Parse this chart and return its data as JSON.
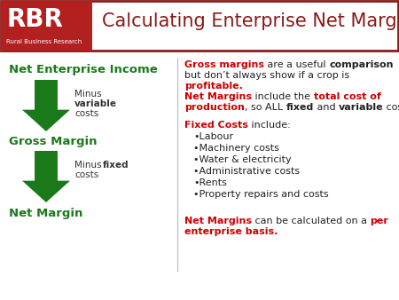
{
  "title": "Calculating Enterprise Net Margins",
  "rbr_text": "RBR",
  "rbr_subtext": "Rural Business Research",
  "bg_color": "#ffffff",
  "rbr_bg": "#b22020",
  "header_text_color": "#8b1a1a",
  "border_color": "#8b1a1a",
  "green_color": "#1a7a1a",
  "red_color": "#cc0000",
  "black_color": "#222222",
  "left_labels": [
    "Net Enterprise Income",
    "Gross Margin",
    "Net Margin"
  ],
  "bullet_items": [
    "•Labour",
    "•Machinery costs",
    "•Water & electricity",
    "•Administrative costs",
    "•Rents",
    "•Property repairs and costs"
  ]
}
